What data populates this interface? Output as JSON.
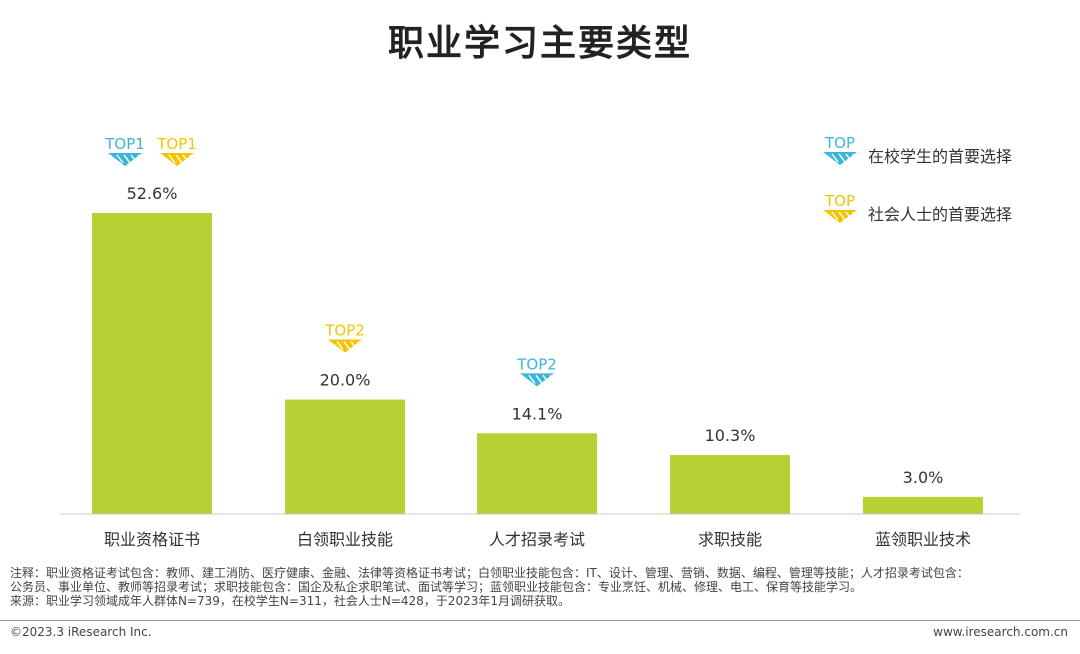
{
  "title": "职业学习主要类型",
  "chart_data": {
    "type": "bar",
    "categories": [
      "职业资格证书",
      "白领职业技能",
      "人才招录考试",
      "求职技能",
      "蓝领职业技术"
    ],
    "values": [
      52.6,
      20.0,
      14.1,
      10.3,
      3.0
    ],
    "value_labels": [
      "52.6%",
      "20.0%",
      "14.1%",
      "10.3%",
      "3.0%"
    ],
    "unit": "%",
    "ylim": [
      0,
      52.6
    ],
    "grid": false,
    "bar_color": "#b5d134",
    "badges": [
      {
        "category_index": 0,
        "group": "student",
        "label": "TOP1"
      },
      {
        "category_index": 0,
        "group": "adult",
        "label": "TOP1"
      },
      {
        "category_index": 1,
        "group": "adult",
        "label": "TOP2"
      },
      {
        "category_index": 2,
        "group": "student",
        "label": "TOP2"
      }
    ],
    "legend": {
      "placement": "top-right",
      "items": [
        {
          "group": "student",
          "badge": "TOP",
          "label": "在校学生的首要选择",
          "color": "#3cb6d8"
        },
        {
          "group": "adult",
          "badge": "TOP",
          "label": "社会人士的首要选择",
          "color": "#f5c400"
        }
      ]
    }
  },
  "notes": {
    "line1": "注释：职业资格证考试包含：教师、建工消防、医疗健康、金融、法律等资格证书考试；白领职业技能包含：IT、设计、管理、营销、数据、编程、管理等技能；人才招录考试包含：",
    "line2": "公务员、事业单位、教师等招录考试；求职技能包含：国企及私企求职笔试、面试等学习；蓝领职业技能包含：专业烹饪、机械、修理、电工、保育等技能学习。",
    "line3": "来源：职业学习领域成年人群体N=739，在校学生N=311，社会人士N=428，于2023年1月调研获取。"
  },
  "footer": {
    "copyright": "©2023.3 iResearch Inc.",
    "website": "www.iresearch.com.cn"
  }
}
